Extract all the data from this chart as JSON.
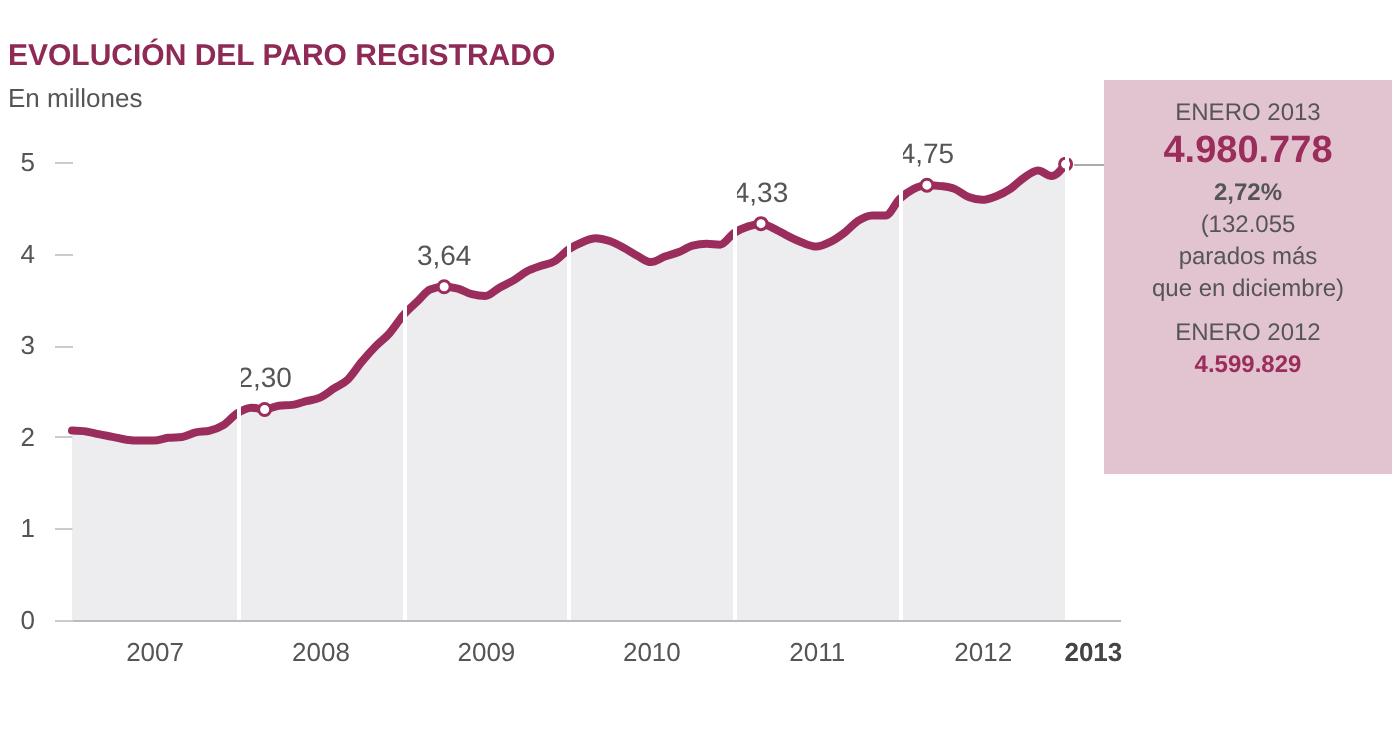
{
  "chart_data": {
    "type": "area",
    "title": "EVOLUCIÓN DEL PARO REGISTRADO",
    "subtitle": "En millones",
    "x": [
      "2007-01",
      "2007-02",
      "2007-03",
      "2007-04",
      "2007-05",
      "2007-06",
      "2007-07",
      "2007-08",
      "2007-09",
      "2007-10",
      "2007-11",
      "2007-12",
      "2008-01",
      "2008-02",
      "2008-03",
      "2008-04",
      "2008-05",
      "2008-06",
      "2008-07",
      "2008-08",
      "2008-09",
      "2008-10",
      "2008-11",
      "2008-12",
      "2009-01",
      "2009-02",
      "2009-03",
      "2009-04",
      "2009-05",
      "2009-06",
      "2009-07",
      "2009-08",
      "2009-09",
      "2009-10",
      "2009-11",
      "2009-12",
      "2010-01",
      "2010-02",
      "2010-03",
      "2010-04",
      "2010-05",
      "2010-06",
      "2010-07",
      "2010-08",
      "2010-09",
      "2010-10",
      "2010-11",
      "2010-12",
      "2011-01",
      "2011-02",
      "2011-03",
      "2011-04",
      "2011-05",
      "2011-06",
      "2011-07",
      "2011-08",
      "2011-09",
      "2011-10",
      "2011-11",
      "2011-12",
      "2012-01",
      "2012-02",
      "2012-03",
      "2012-04",
      "2012-05",
      "2012-06",
      "2012-07",
      "2012-08",
      "2012-09",
      "2012-10",
      "2012-11",
      "2012-12",
      "2013-01"
    ],
    "series": [
      {
        "color": "#9b2d5c",
        "values": [
          2.07,
          2.06,
          2.03,
          2.0,
          1.97,
          1.96,
          1.96,
          1.99,
          2.0,
          2.05,
          2.07,
          2.13,
          2.26,
          2.32,
          2.3,
          2.34,
          2.35,
          2.39,
          2.43,
          2.53,
          2.63,
          2.82,
          2.99,
          3.13,
          3.33,
          3.48,
          3.61,
          3.64,
          3.62,
          3.56,
          3.54,
          3.63,
          3.71,
          3.81,
          3.87,
          3.92,
          4.05,
          4.13,
          4.17,
          4.14,
          4.07,
          3.98,
          3.91,
          3.97,
          4.02,
          4.09,
          4.11,
          4.1,
          4.23,
          4.3,
          4.33,
          4.27,
          4.19,
          4.12,
          4.08,
          4.13,
          4.23,
          4.36,
          4.42,
          4.42,
          4.6,
          4.71,
          4.75,
          4.74,
          4.71,
          4.62,
          4.59,
          4.63,
          4.71,
          4.83,
          4.91,
          4.85,
          4.98
        ]
      },
      {
        "type": "scatter",
        "color": "#9b2d5c",
        "x": [
          "2008-03",
          "2009-04",
          "2011-03",
          "2012-03",
          "2013-01"
        ],
        "values": [
          2.3,
          3.64,
          4.33,
          4.75,
          4.98
        ]
      }
    ],
    "xlim": [
      "2007-01",
      "2013-05"
    ],
    "xticks": [
      {
        "value": "2007-07",
        "label": "2007"
      },
      {
        "value": "2008-01",
        "label": null
      },
      {
        "value": "2008-07",
        "label": "2008"
      },
      {
        "value": "2009-01",
        "label": null
      },
      {
        "value": "2009-07",
        "label": "2009"
      },
      {
        "value": "2010-01",
        "label": null
      },
      {
        "value": "2010-07",
        "label": "2010"
      },
      {
        "value": "2011-01",
        "label": null
      },
      {
        "value": "2011-07",
        "label": "2011"
      },
      {
        "value": "2012-01",
        "label": null
      },
      {
        "value": "2012-07",
        "label": "2012"
      },
      {
        "value": "2013-01",
        "label": null
      },
      {
        "value": "2013-03",
        "label": "2013"
      }
    ],
    "ylim": [
      0,
      5.2
    ],
    "yticks": [
      0,
      1,
      2,
      3,
      4,
      5
    ],
    "grid": "x",
    "annotations": [
      {
        "text": "2,30",
        "x": "2008-03",
        "y": 2.3
      },
      {
        "text": "3,64",
        "x": "2009-04",
        "y": 3.64
      },
      {
        "text": "4,33",
        "x": "2011-03",
        "y": 4.33
      },
      {
        "text": "4,75",
        "x": "2012-03",
        "y": 4.75
      },
      "ENERO 2013",
      "4.980.778",
      "2,72%",
      "(132.055",
      "parados más",
      "que en diciembre)",
      "ENERO 2012",
      "4.599.829"
    ]
  }
}
